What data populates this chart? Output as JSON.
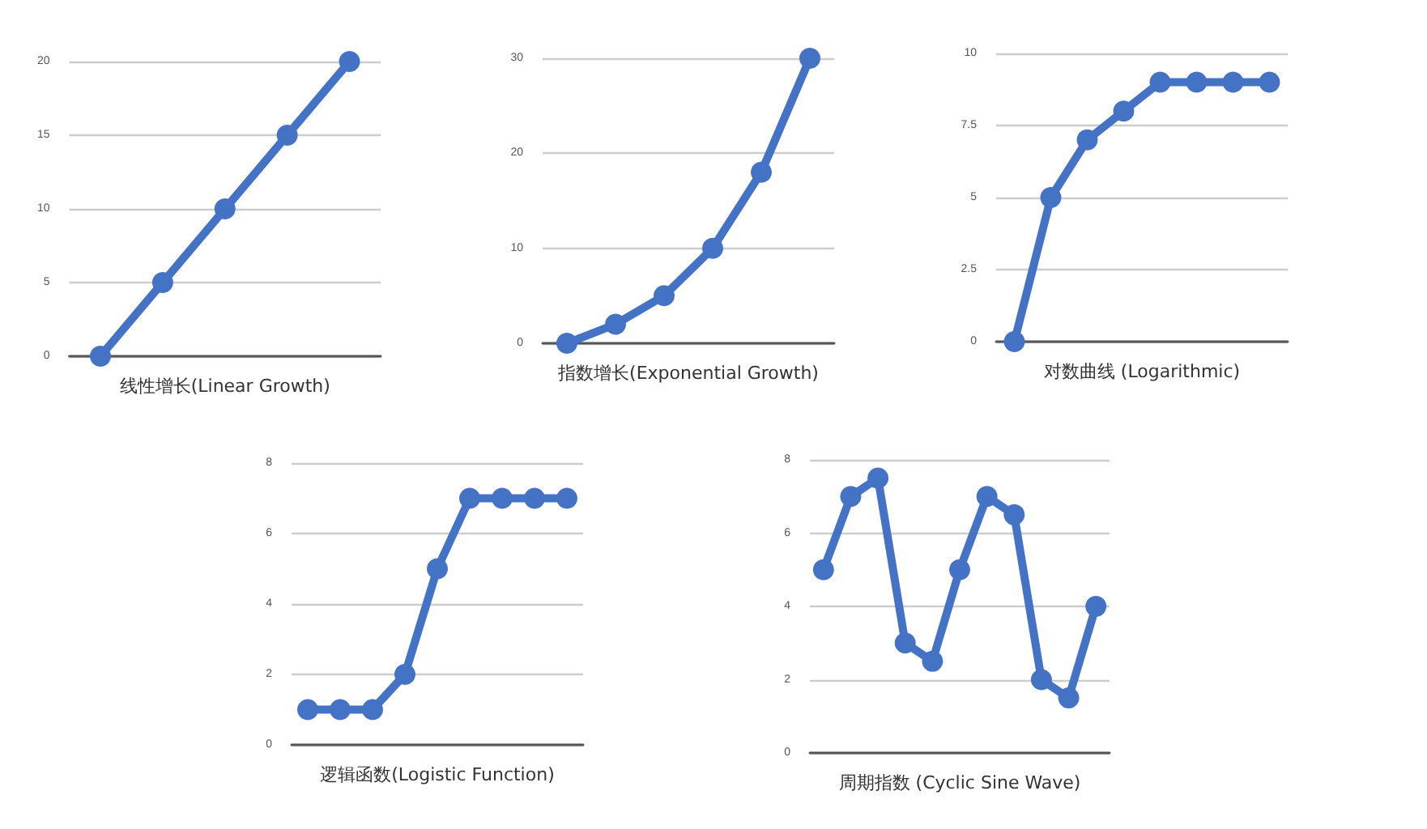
{
  "chart_data": [
    {
      "type": "line",
      "xlabel": "线性增长(Linear Growth)",
      "categories": [
        null,
        null,
        null,
        null,
        null
      ],
      "series": [
        {
          "color": "#4472c4",
          "values": [
            0,
            5,
            10,
            15,
            20
          ]
        }
      ],
      "ylim": [
        0,
        20
      ],
      "yticks": [
        0,
        5,
        10,
        15,
        20
      ],
      "grid": "y",
      "marker": "circle",
      "line_style": "solid"
    },
    {
      "type": "line",
      "xlabel": "指数增长(Exponential Growth)",
      "categories": [
        null,
        null,
        null,
        null,
        null,
        null
      ],
      "series": [
        {
          "color": "#4472c4",
          "values": [
            0,
            2,
            5,
            10,
            18,
            30
          ]
        }
      ],
      "ylim": [
        0,
        30
      ],
      "yticks": [
        0,
        10,
        20,
        30
      ],
      "grid": "y",
      "marker": "circle",
      "line_style": "solid"
    },
    {
      "type": "line",
      "xlabel": "对数曲线 (Logarithmic)",
      "categories": [
        null,
        null,
        null,
        null,
        null,
        null,
        null,
        null
      ],
      "series": [
        {
          "color": "#4472c4",
          "values": [
            0,
            5,
            7,
            8,
            9,
            9,
            9,
            9
          ]
        }
      ],
      "ylim": [
        0,
        10
      ],
      "yticks": [
        0,
        2.5,
        5,
        7.5,
        10
      ],
      "grid": "y",
      "marker": "circle",
      "line_style": "solid"
    },
    {
      "type": "line",
      "xlabel": "逻辑函数(Logistic Function)",
      "categories": [
        null,
        null,
        null,
        null,
        null,
        null,
        null,
        null,
        null
      ],
      "series": [
        {
          "color": "#4472c4",
          "values": [
            1,
            1,
            1,
            2,
            5,
            7,
            7,
            7,
            7
          ]
        }
      ],
      "ylim": [
        0,
        8
      ],
      "yticks": [
        0,
        2,
        4,
        6,
        8
      ],
      "grid": "y",
      "marker": "circle",
      "line_style": "solid"
    },
    {
      "type": "line",
      "xlabel": "周期指数 (Cyclic Sine Wave)",
      "categories": [
        null,
        null,
        null,
        null,
        null,
        null,
        null,
        null,
        null,
        null,
        null
      ],
      "series": [
        {
          "color": "#4472c4",
          "values": [
            5,
            7,
            7.5,
            3,
            2.5,
            5,
            7,
            6.5,
            2,
            1.5,
            4
          ]
        }
      ],
      "ylim": [
        0,
        8
      ],
      "yticks": [
        0,
        2,
        4,
        6,
        8
      ],
      "grid": "y",
      "marker": "circle",
      "line_style": "solid"
    }
  ]
}
